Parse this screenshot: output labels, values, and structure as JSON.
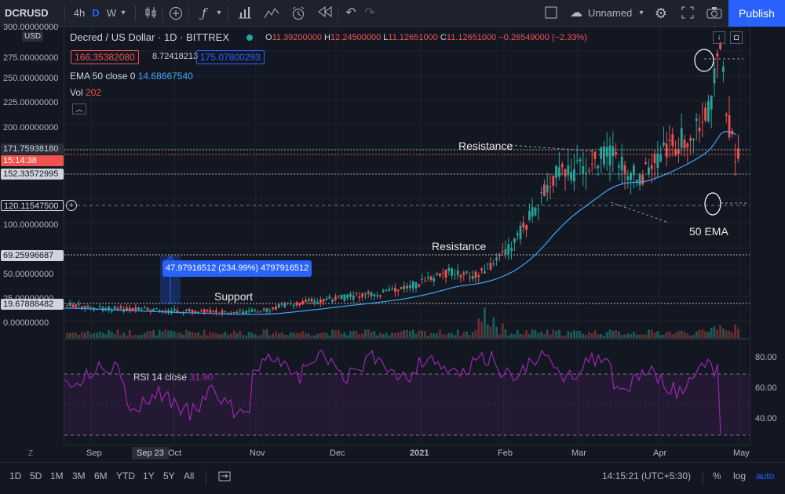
{
  "toolbar": {
    "symbol": "DCRUSD",
    "timeframes": [
      "4h",
      "D",
      "W"
    ],
    "layout_name": "Unnamed",
    "publish": "Publish"
  },
  "legend": {
    "title": "Decred / US Dollar",
    "interval": "1D",
    "exchange": "BITTREX",
    "o_label": "O",
    "o": "11.39200000",
    "h_label": "H",
    "h": "12.24500000",
    "l_label": "L",
    "l": "11.12651000",
    "c_label": "C",
    "c": "11.12651000",
    "change": "−0.26549000 (−2.33%)",
    "bid": "166.35382080",
    "spread": "8.72418213",
    "ask": "175.07800293",
    "ema_label": "EMA 50 close 0",
    "ema_value": "14.68667540",
    "vol_label": "Vol",
    "vol_value": "202",
    "rsi_label": "RSI 14 close",
    "rsi_value": "31.90"
  },
  "left_scale": {
    "currency": "USD",
    "labels": [
      "300.00000000",
      "275.00000000",
      "250.00000000",
      "225.00000000",
      "200.00000000",
      "100.00000000",
      "50.00000000",
      "25.00000000",
      "0.00000000"
    ],
    "tags": [
      {
        "text": "171.75938180",
        "bg": "#2a2e39",
        "fg": "#d1d4dc"
      },
      {
        "text": "15:14:38",
        "bg": "#ef5350",
        "fg": "#ffffff"
      },
      {
        "text": "152.33572995",
        "bg": "#d1d4dc",
        "fg": "#131722"
      },
      {
        "text": "120.11547500",
        "bg": "#131722",
        "fg": "#d1d4dc"
      },
      {
        "text": "69.25996687",
        "bg": "#d1d4dc",
        "fg": "#131722"
      },
      {
        "text": "19.67888482",
        "bg": "#d1d4dc",
        "fg": "#131722"
      }
    ]
  },
  "rsi_scale": [
    "80.00",
    "60.00",
    "40.00"
  ],
  "time_axis": [
    "Sep",
    "Sep 23",
    "Oct",
    "Nov",
    "Dec",
    "2021",
    "Feb",
    "Mar",
    "Apr",
    "May"
  ],
  "annotations": {
    "resistance_top": "Resistance",
    "resistance_mid": "Resistance",
    "support": "Support",
    "ema_note": "50 EMA",
    "measure": "47.97916512 (234.99%) 4797916512"
  },
  "bottom": {
    "ranges": [
      "1D",
      "5D",
      "1M",
      "3M",
      "6M",
      "YTD",
      "1Y",
      "5Y",
      "All"
    ],
    "clock": "14:15:21 (UTC+5:30)",
    "pct": "%",
    "log": "log",
    "auto": "auto"
  },
  "colors": {
    "up": "#26a69a",
    "down": "#ef5350",
    "ema": "#2962ff",
    "rsi": "#9c27b0",
    "accent": "#2962ff"
  }
}
